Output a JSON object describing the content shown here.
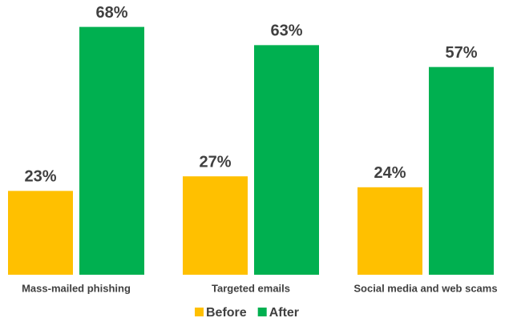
{
  "chart_data": {
    "type": "bar",
    "categories": [
      "Mass-mailed phishing",
      "Targeted emails",
      "Social media and web scams"
    ],
    "series": [
      {
        "name": "Before",
        "color": "#ffc000",
        "values": [
          23,
          27,
          24
        ],
        "value_labels": [
          "23%",
          "27%",
          "24%"
        ]
      },
      {
        "name": "After",
        "color": "#00b050",
        "values": [
          68,
          63,
          57
        ],
        "value_labels": [
          "68%",
          "63%",
          "57%"
        ]
      }
    ],
    "legend": "bottom"
  }
}
